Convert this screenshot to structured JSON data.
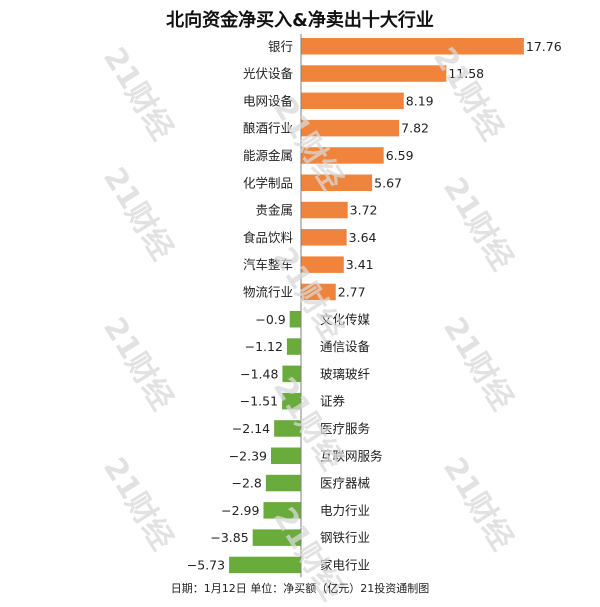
{
  "title": "北向资金净买入&净卖出十大行业",
  "footer": "日期：1月12日 单位：净买额（亿元）21投资通制图",
  "watermark": "21财经",
  "colors": {
    "positive": "#f0843c",
    "negative": "#6aac3c",
    "axis": "#7f7f7f"
  },
  "chart_data": {
    "type": "bar",
    "orientation": "horizontal",
    "title": "北向资金净买入&净卖出十大行业",
    "categories": [
      "银行",
      "光伏设备",
      "电网设备",
      "酿酒行业",
      "能源金属",
      "化学制品",
      "贵金属",
      "食品饮料",
      "汽车整车",
      "物流行业",
      "文化传媒",
      "通信设备",
      "玻璃玻纤",
      "证券",
      "医疗服务",
      "互联网服务",
      "医疗器械",
      "电力行业",
      "钢铁行业",
      "家电行业"
    ],
    "values": [
      17.76,
      11.58,
      8.19,
      7.82,
      6.59,
      5.67,
      3.72,
      3.64,
      3.41,
      2.77,
      -0.9,
      -1.12,
      -1.48,
      -1.51,
      -2.14,
      -2.39,
      -2.8,
      -2.99,
      -3.85,
      -5.73
    ],
    "value_labels": [
      "17.76",
      "11.58",
      "8.19",
      "7.82",
      "6.59",
      "5.67",
      "3.72",
      "3.64",
      "3.41",
      "2.77",
      "−0.9",
      "−1.12",
      "−1.48",
      "−1.51",
      "−2.14",
      "−2.39",
      "−2.8",
      "−2.99",
      "−3.85",
      "−5.73"
    ],
    "unit": "亿元"
  }
}
